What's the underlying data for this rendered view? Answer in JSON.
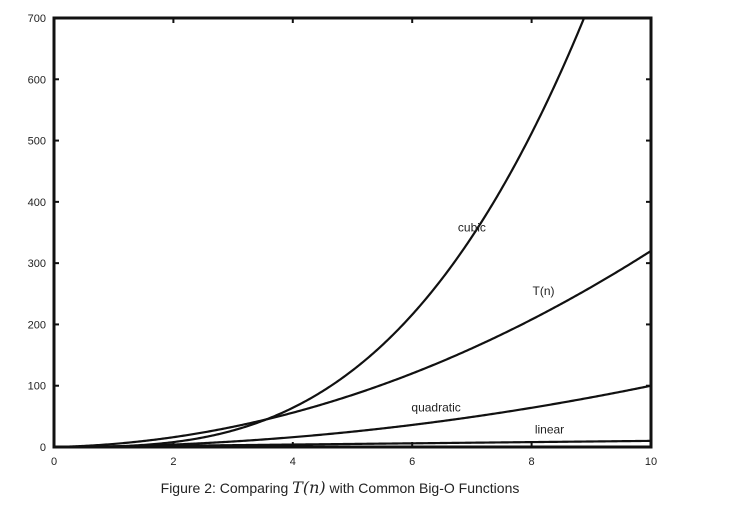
{
  "chart_data": {
    "type": "line",
    "xlim": [
      0,
      10
    ],
    "ylim": [
      0,
      700
    ],
    "x_ticks": [
      0,
      2,
      4,
      6,
      8,
      10
    ],
    "y_ticks": [
      0,
      100,
      200,
      300,
      400,
      500,
      600,
      700
    ],
    "grid": false,
    "series": [
      {
        "name": "cubic",
        "formula": "n^3",
        "label_at": [
          7.0,
          352
        ]
      },
      {
        "name": "T(n)",
        "formula": "3n^2+2n",
        "label_at": [
          8.2,
          248
        ]
      },
      {
        "name": "quadratic",
        "formula": "n^2",
        "label_at": [
          6.4,
          58
        ]
      },
      {
        "name": "linear",
        "formula": "n",
        "label_at": [
          8.3,
          22
        ]
      }
    ]
  },
  "caption": {
    "prefix": "Figure 2: Comparing ",
    "math": "T(n)",
    "suffix": " with Common Big-O Functions"
  },
  "colors": {
    "line": "#111111",
    "axis": "#111111"
  }
}
